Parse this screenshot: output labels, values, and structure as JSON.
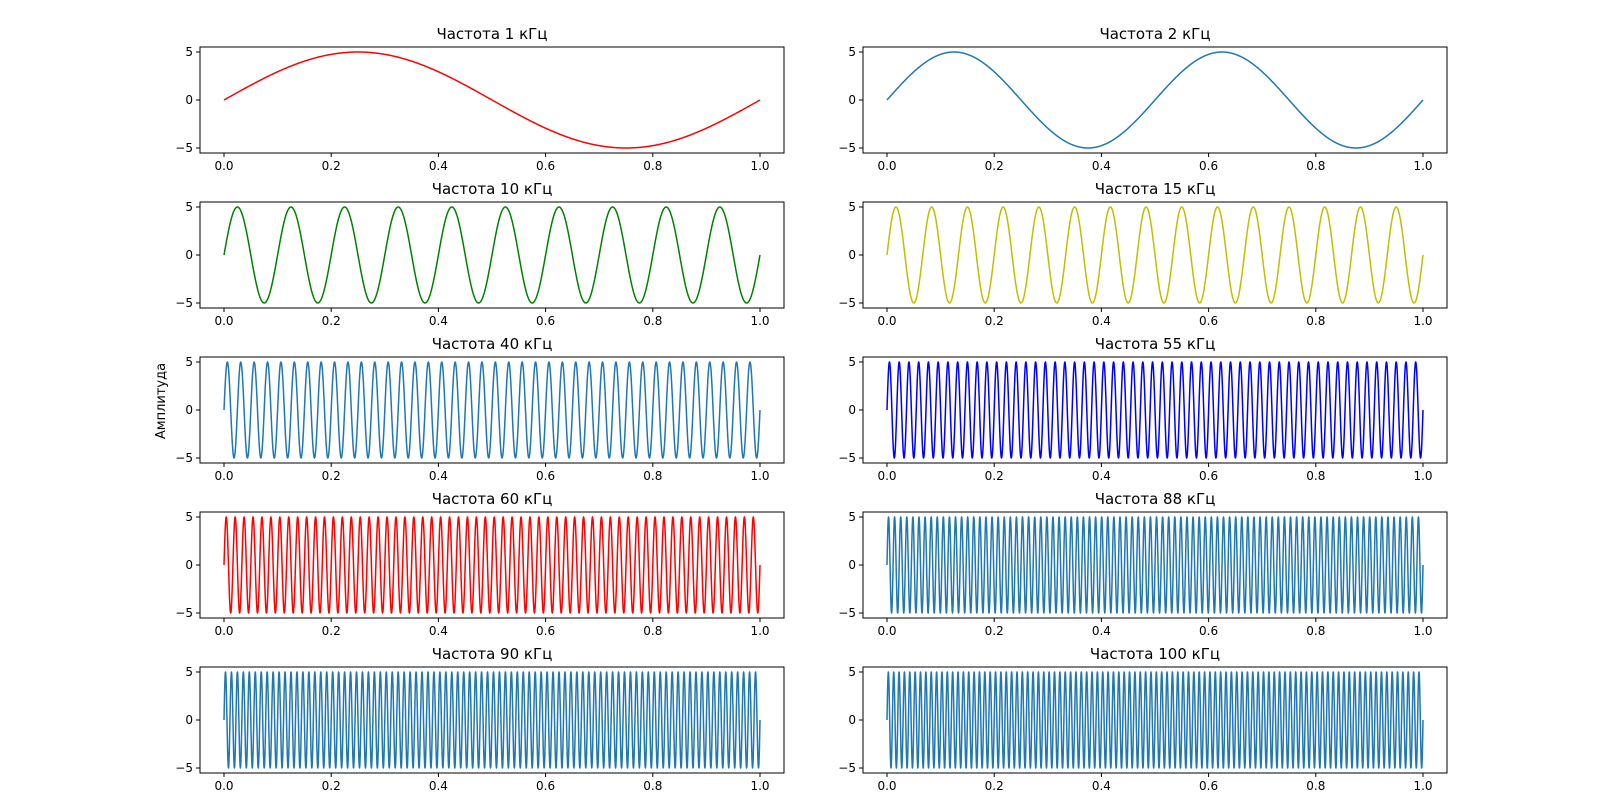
{
  "chart_data": [
    {
      "type": "line",
      "title": "Частота 1 кГц",
      "frequency_khz": 1,
      "amplitude": 5,
      "color": "#ff0000",
      "xlim": [
        0.0,
        1.0
      ],
      "ylim": [
        -5,
        5
      ],
      "xticks": [
        "0.0",
        "0.2",
        "0.4",
        "0.6",
        "0.8",
        "1.0"
      ],
      "yticks": [
        "5",
        "0",
        "−5"
      ]
    },
    {
      "type": "line",
      "title": "Частота 2 кГц",
      "frequency_khz": 2,
      "amplitude": 5,
      "color": "#1f77b4",
      "xlim": [
        0.0,
        1.0
      ],
      "ylim": [
        -5,
        5
      ],
      "xticks": [
        "0.0",
        "0.2",
        "0.4",
        "0.6",
        "0.8",
        "1.0"
      ],
      "yticks": [
        "5",
        "0",
        "−5"
      ]
    },
    {
      "type": "line",
      "title": "Частота 10 кГц",
      "frequency_khz": 10,
      "amplitude": 5,
      "color": "#008000",
      "xlim": [
        0.0,
        1.0
      ],
      "ylim": [
        -5,
        5
      ],
      "xticks": [
        "0.0",
        "0.2",
        "0.4",
        "0.6",
        "0.8",
        "1.0"
      ],
      "yticks": [
        "5",
        "0",
        "−5"
      ]
    },
    {
      "type": "line",
      "title": "Частота 15 кГц",
      "frequency_khz": 15,
      "amplitude": 5,
      "color": "#bfbf00",
      "xlim": [
        0.0,
        1.0
      ],
      "ylim": [
        -5,
        5
      ],
      "xticks": [
        "0.0",
        "0.2",
        "0.4",
        "0.6",
        "0.8",
        "1.0"
      ],
      "yticks": [
        "5",
        "0",
        "−5"
      ]
    },
    {
      "type": "line",
      "title": "Частота 40 кГц",
      "frequency_khz": 40,
      "amplitude": 5,
      "color": "#1f77b4",
      "xlim": [
        0.0,
        1.0
      ],
      "ylim": [
        -5,
        5
      ],
      "xticks": [
        "0.0",
        "0.2",
        "0.4",
        "0.6",
        "0.8",
        "1.0"
      ],
      "yticks": [
        "5",
        "0",
        "−5"
      ]
    },
    {
      "type": "line",
      "title": "Частота 55 кГц",
      "frequency_khz": 55,
      "amplitude": 5,
      "color": "#0000ff",
      "xlim": [
        0.0,
        1.0
      ],
      "ylim": [
        -5,
        5
      ],
      "xticks": [
        "0.0",
        "0.2",
        "0.4",
        "0.6",
        "0.8",
        "1.0"
      ],
      "yticks": [
        "5",
        "0",
        "−5"
      ]
    },
    {
      "type": "line",
      "title": "Частота 60 кГц",
      "frequency_khz": 60,
      "amplitude": 5,
      "color": "#ff0000",
      "xlim": [
        0.0,
        1.0
      ],
      "ylim": [
        -5,
        5
      ],
      "xticks": [
        "0.0",
        "0.2",
        "0.4",
        "0.6",
        "0.8",
        "1.0"
      ],
      "yticks": [
        "5",
        "0",
        "−5"
      ]
    },
    {
      "type": "line",
      "title": "Частота 88 кГц",
      "frequency_khz": 88,
      "amplitude": 5,
      "color": "#1f77b4",
      "xlim": [
        0.0,
        1.0
      ],
      "ylim": [
        -5,
        5
      ],
      "xticks": [
        "0.0",
        "0.2",
        "0.4",
        "0.6",
        "0.8",
        "1.0"
      ],
      "yticks": [
        "5",
        "0",
        "−5"
      ]
    },
    {
      "type": "line",
      "title": "Частота 90 кГц",
      "frequency_khz": 90,
      "amplitude": 5,
      "color": "#1f77b4",
      "xlim": [
        0.0,
        1.0
      ],
      "ylim": [
        -5,
        5
      ],
      "xticks": [
        "0.0",
        "0.2",
        "0.4",
        "0.6",
        "0.8",
        "1.0"
      ],
      "yticks": [
        "5",
        "0",
        "−5"
      ]
    },
    {
      "type": "line",
      "title": "Частота 100 кГц",
      "frequency_khz": 100,
      "amplitude": 5,
      "color": "#1f77b4",
      "xlim": [
        0.0,
        1.0
      ],
      "ylim": [
        -5,
        5
      ],
      "xticks": [
        "0.0",
        "0.2",
        "0.4",
        "0.6",
        "0.8",
        "1.0"
      ],
      "yticks": [
        "5",
        "0",
        "−5"
      ]
    }
  ],
  "figure": {
    "ylabel": "Амплитуда"
  }
}
